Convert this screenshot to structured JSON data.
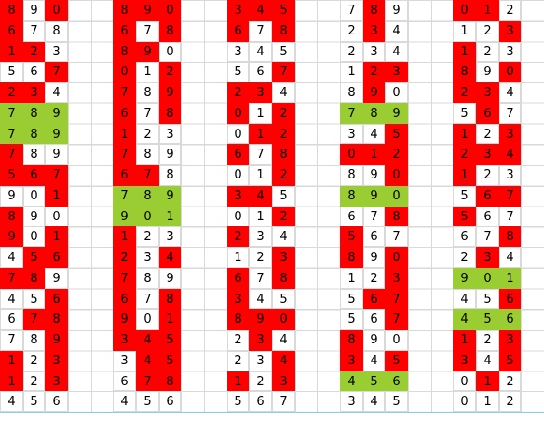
{
  "rows": [
    [
      {
        "v": 8,
        "fill": "red"
      },
      {
        "v": 9,
        "fill": "white"
      },
      {
        "v": 0,
        "fill": "red"
      },
      {
        "v": 8,
        "fill": "red"
      },
      {
        "v": 9,
        "fill": "red"
      },
      {
        "v": 0,
        "fill": "red"
      },
      {
        "v": 3,
        "fill": "red"
      },
      {
        "v": 4,
        "fill": "red"
      },
      {
        "v": 5,
        "fill": "red"
      },
      {
        "v": 7,
        "fill": "white"
      },
      {
        "v": 8,
        "fill": "red"
      },
      {
        "v": 9,
        "fill": "white"
      },
      {
        "v": 0,
        "fill": "red"
      },
      {
        "v": 1,
        "fill": "red"
      },
      {
        "v": 2,
        "fill": "white"
      }
    ],
    [
      {
        "v": 6,
        "fill": "red"
      },
      {
        "v": 7,
        "fill": "white"
      },
      {
        "v": 8,
        "fill": "white"
      },
      {
        "v": 6,
        "fill": "red"
      },
      {
        "v": 7,
        "fill": "white"
      },
      {
        "v": 8,
        "fill": "red"
      },
      {
        "v": 6,
        "fill": "red"
      },
      {
        "v": 7,
        "fill": "white"
      },
      {
        "v": 8,
        "fill": "red"
      },
      {
        "v": 2,
        "fill": "white"
      },
      {
        "v": 3,
        "fill": "red"
      },
      {
        "v": 4,
        "fill": "white"
      },
      {
        "v": 1,
        "fill": "white"
      },
      {
        "v": 2,
        "fill": "white"
      },
      {
        "v": 3,
        "fill": "red"
      }
    ],
    [
      {
        "v": 1,
        "fill": "red"
      },
      {
        "v": 2,
        "fill": "red"
      },
      {
        "v": 3,
        "fill": "white"
      },
      {
        "v": 8,
        "fill": "red"
      },
      {
        "v": 9,
        "fill": "red"
      },
      {
        "v": 0,
        "fill": "white"
      },
      {
        "v": 3,
        "fill": "white"
      },
      {
        "v": 4,
        "fill": "white"
      },
      {
        "v": 5,
        "fill": "white"
      },
      {
        "v": 2,
        "fill": "white"
      },
      {
        "v": 3,
        "fill": "white"
      },
      {
        "v": 4,
        "fill": "white"
      },
      {
        "v": 1,
        "fill": "red"
      },
      {
        "v": 2,
        "fill": "white"
      },
      {
        "v": 3,
        "fill": "white"
      }
    ],
    [
      {
        "v": 5,
        "fill": "white"
      },
      {
        "v": 6,
        "fill": "white"
      },
      {
        "v": 7,
        "fill": "red"
      },
      {
        "v": 0,
        "fill": "red"
      },
      {
        "v": 1,
        "fill": "white"
      },
      {
        "v": 2,
        "fill": "red"
      },
      {
        "v": 5,
        "fill": "white"
      },
      {
        "v": 6,
        "fill": "white"
      },
      {
        "v": 7,
        "fill": "red"
      },
      {
        "v": 1,
        "fill": "white"
      },
      {
        "v": 2,
        "fill": "red"
      },
      {
        "v": 3,
        "fill": "red"
      },
      {
        "v": 8,
        "fill": "red"
      },
      {
        "v": 9,
        "fill": "white"
      },
      {
        "v": 0,
        "fill": "red"
      }
    ],
    [
      {
        "v": 2,
        "fill": "red"
      },
      {
        "v": 3,
        "fill": "red"
      },
      {
        "v": 4,
        "fill": "white"
      },
      {
        "v": 7,
        "fill": "red"
      },
      {
        "v": 8,
        "fill": "white"
      },
      {
        "v": 9,
        "fill": "red"
      },
      {
        "v": 2,
        "fill": "red"
      },
      {
        "v": 3,
        "fill": "red"
      },
      {
        "v": 4,
        "fill": "white"
      },
      {
        "v": 8,
        "fill": "white"
      },
      {
        "v": 9,
        "fill": "red"
      },
      {
        "v": 0,
        "fill": "white"
      },
      {
        "v": 2,
        "fill": "red"
      },
      {
        "v": 3,
        "fill": "red"
      },
      {
        "v": 4,
        "fill": "white"
      }
    ],
    [
      {
        "v": 7,
        "fill": "yellowgreen"
      },
      {
        "v": 8,
        "fill": "yellowgreen"
      },
      {
        "v": 9,
        "fill": "yellowgreen"
      },
      {
        "v": 6,
        "fill": "red"
      },
      {
        "v": 7,
        "fill": "white"
      },
      {
        "v": 8,
        "fill": "red"
      },
      {
        "v": 0,
        "fill": "red"
      },
      {
        "v": 1,
        "fill": "white"
      },
      {
        "v": 2,
        "fill": "red"
      },
      {
        "v": 7,
        "fill": "yellowgreen"
      },
      {
        "v": 8,
        "fill": "yellowgreen"
      },
      {
        "v": 9,
        "fill": "yellowgreen"
      },
      {
        "v": 5,
        "fill": "white"
      },
      {
        "v": 6,
        "fill": "red"
      },
      {
        "v": 7,
        "fill": "white"
      }
    ],
    [
      {
        "v": 7,
        "fill": "yellowgreen"
      },
      {
        "v": 8,
        "fill": "yellowgreen"
      },
      {
        "v": 9,
        "fill": "yellowgreen"
      },
      {
        "v": 1,
        "fill": "red"
      },
      {
        "v": 2,
        "fill": "white"
      },
      {
        "v": 3,
        "fill": "white"
      },
      {
        "v": 0,
        "fill": "white"
      },
      {
        "v": 1,
        "fill": "red"
      },
      {
        "v": 2,
        "fill": "red"
      },
      {
        "v": 3,
        "fill": "white"
      },
      {
        "v": 4,
        "fill": "white"
      },
      {
        "v": 5,
        "fill": "red"
      },
      {
        "v": 1,
        "fill": "red"
      },
      {
        "v": 2,
        "fill": "white"
      },
      {
        "v": 3,
        "fill": "red"
      }
    ],
    [
      {
        "v": 7,
        "fill": "red"
      },
      {
        "v": 8,
        "fill": "white"
      },
      {
        "v": 9,
        "fill": "white"
      },
      {
        "v": 7,
        "fill": "red"
      },
      {
        "v": 8,
        "fill": "white"
      },
      {
        "v": 9,
        "fill": "white"
      },
      {
        "v": 6,
        "fill": "red"
      },
      {
        "v": 7,
        "fill": "white"
      },
      {
        "v": 8,
        "fill": "red"
      },
      {
        "v": 0,
        "fill": "red"
      },
      {
        "v": 1,
        "fill": "red"
      },
      {
        "v": 2,
        "fill": "red"
      },
      {
        "v": 2,
        "fill": "red"
      },
      {
        "v": 3,
        "fill": "red"
      },
      {
        "v": 4,
        "fill": "red"
      }
    ],
    [
      {
        "v": 5,
        "fill": "red"
      },
      {
        "v": 6,
        "fill": "red"
      },
      {
        "v": 7,
        "fill": "red"
      },
      {
        "v": 6,
        "fill": "red"
      },
      {
        "v": 7,
        "fill": "red"
      },
      {
        "v": 8,
        "fill": "white"
      },
      {
        "v": 0,
        "fill": "white"
      },
      {
        "v": 1,
        "fill": "white"
      },
      {
        "v": 2,
        "fill": "red"
      },
      {
        "v": 8,
        "fill": "white"
      },
      {
        "v": 9,
        "fill": "white"
      },
      {
        "v": 0,
        "fill": "red"
      },
      {
        "v": 1,
        "fill": "red"
      },
      {
        "v": 2,
        "fill": "white"
      },
      {
        "v": 3,
        "fill": "white"
      }
    ],
    [
      {
        "v": 9,
        "fill": "white"
      },
      {
        "v": 0,
        "fill": "white"
      },
      {
        "v": 1,
        "fill": "red"
      },
      {
        "v": 7,
        "fill": "yellowgreen"
      },
      {
        "v": 8,
        "fill": "yellowgreen"
      },
      {
        "v": 9,
        "fill": "yellowgreen"
      },
      {
        "v": 3,
        "fill": "red"
      },
      {
        "v": 4,
        "fill": "red"
      },
      {
        "v": 5,
        "fill": "white"
      },
      {
        "v": 8,
        "fill": "yellowgreen"
      },
      {
        "v": 9,
        "fill": "yellowgreen"
      },
      {
        "v": 0,
        "fill": "yellowgreen"
      },
      {
        "v": 5,
        "fill": "white"
      },
      {
        "v": 6,
        "fill": "red"
      },
      {
        "v": 7,
        "fill": "red"
      }
    ],
    [
      {
        "v": 8,
        "fill": "red"
      },
      {
        "v": 9,
        "fill": "white"
      },
      {
        "v": 0,
        "fill": "white"
      },
      {
        "v": 9,
        "fill": "yellowgreen"
      },
      {
        "v": 0,
        "fill": "yellowgreen"
      },
      {
        "v": 1,
        "fill": "yellowgreen"
      },
      {
        "v": 0,
        "fill": "white"
      },
      {
        "v": 1,
        "fill": "white"
      },
      {
        "v": 2,
        "fill": "red"
      },
      {
        "v": 6,
        "fill": "white"
      },
      {
        "v": 7,
        "fill": "white"
      },
      {
        "v": 8,
        "fill": "red"
      },
      {
        "v": 5,
        "fill": "red"
      },
      {
        "v": 6,
        "fill": "white"
      },
      {
        "v": 7,
        "fill": "white"
      }
    ],
    [
      {
        "v": 9,
        "fill": "red"
      },
      {
        "v": 0,
        "fill": "white"
      },
      {
        "v": 1,
        "fill": "red"
      },
      {
        "v": 1,
        "fill": "red"
      },
      {
        "v": 2,
        "fill": "white"
      },
      {
        "v": 3,
        "fill": "white"
      },
      {
        "v": 2,
        "fill": "red"
      },
      {
        "v": 3,
        "fill": "white"
      },
      {
        "v": 4,
        "fill": "white"
      },
      {
        "v": 5,
        "fill": "red"
      },
      {
        "v": 6,
        "fill": "white"
      },
      {
        "v": 7,
        "fill": "white"
      },
      {
        "v": 6,
        "fill": "white"
      },
      {
        "v": 7,
        "fill": "white"
      },
      {
        "v": 8,
        "fill": "red"
      }
    ],
    [
      {
        "v": 4,
        "fill": "white"
      },
      {
        "v": 5,
        "fill": "red"
      },
      {
        "v": 6,
        "fill": "red"
      },
      {
        "v": 2,
        "fill": "red"
      },
      {
        "v": 3,
        "fill": "white"
      },
      {
        "v": 4,
        "fill": "red"
      },
      {
        "v": 1,
        "fill": "white"
      },
      {
        "v": 2,
        "fill": "white"
      },
      {
        "v": 3,
        "fill": "red"
      },
      {
        "v": 8,
        "fill": "red"
      },
      {
        "v": 9,
        "fill": "white"
      },
      {
        "v": 0,
        "fill": "red"
      },
      {
        "v": 2,
        "fill": "white"
      },
      {
        "v": 3,
        "fill": "red"
      },
      {
        "v": 4,
        "fill": "white"
      }
    ],
    [
      {
        "v": 7,
        "fill": "red"
      },
      {
        "v": 8,
        "fill": "red"
      },
      {
        "v": 9,
        "fill": "white"
      },
      {
        "v": 7,
        "fill": "red"
      },
      {
        "v": 8,
        "fill": "white"
      },
      {
        "v": 9,
        "fill": "white"
      },
      {
        "v": 6,
        "fill": "red"
      },
      {
        "v": 7,
        "fill": "white"
      },
      {
        "v": 8,
        "fill": "red"
      },
      {
        "v": 1,
        "fill": "white"
      },
      {
        "v": 2,
        "fill": "white"
      },
      {
        "v": 3,
        "fill": "red"
      },
      {
        "v": 9,
        "fill": "yellowgreen"
      },
      {
        "v": 0,
        "fill": "yellowgreen"
      },
      {
        "v": 1,
        "fill": "yellowgreen"
      }
    ],
    [
      {
        "v": 4,
        "fill": "white"
      },
      {
        "v": 5,
        "fill": "white"
      },
      {
        "v": 6,
        "fill": "red"
      },
      {
        "v": 6,
        "fill": "red"
      },
      {
        "v": 7,
        "fill": "white"
      },
      {
        "v": 8,
        "fill": "red"
      },
      {
        "v": 3,
        "fill": "red"
      },
      {
        "v": 4,
        "fill": "white"
      },
      {
        "v": 5,
        "fill": "white"
      },
      {
        "v": 5,
        "fill": "white"
      },
      {
        "v": 6,
        "fill": "red"
      },
      {
        "v": 7,
        "fill": "red"
      },
      {
        "v": 4,
        "fill": "white"
      },
      {
        "v": 5,
        "fill": "white"
      },
      {
        "v": 6,
        "fill": "red"
      }
    ],
    [
      {
        "v": 6,
        "fill": "white"
      },
      {
        "v": 7,
        "fill": "red"
      },
      {
        "v": 8,
        "fill": "red"
      },
      {
        "v": 9,
        "fill": "red"
      },
      {
        "v": 0,
        "fill": "white"
      },
      {
        "v": 1,
        "fill": "red"
      },
      {
        "v": 8,
        "fill": "red"
      },
      {
        "v": 9,
        "fill": "red"
      },
      {
        "v": 0,
        "fill": "red"
      },
      {
        "v": 5,
        "fill": "white"
      },
      {
        "v": 6,
        "fill": "white"
      },
      {
        "v": 7,
        "fill": "red"
      },
      {
        "v": 4,
        "fill": "yellowgreen"
      },
      {
        "v": 5,
        "fill": "yellowgreen"
      },
      {
        "v": 6,
        "fill": "yellowgreen"
      }
    ],
    [
      {
        "v": 7,
        "fill": "white"
      },
      {
        "v": 8,
        "fill": "white"
      },
      {
        "v": 9,
        "fill": "red"
      },
      {
        "v": 3,
        "fill": "red"
      },
      {
        "v": 4,
        "fill": "red"
      },
      {
        "v": 5,
        "fill": "red"
      },
      {
        "v": 2,
        "fill": "white"
      },
      {
        "v": 3,
        "fill": "red"
      },
      {
        "v": 4,
        "fill": "white"
      },
      {
        "v": 8,
        "fill": "red"
      },
      {
        "v": 9,
        "fill": "white"
      },
      {
        "v": 0,
        "fill": "white"
      },
      {
        "v": 1,
        "fill": "red"
      },
      {
        "v": 2,
        "fill": "white"
      },
      {
        "v": 3,
        "fill": "red"
      }
    ],
    [
      {
        "v": 1,
        "fill": "red"
      },
      {
        "v": 2,
        "fill": "white"
      },
      {
        "v": 3,
        "fill": "red"
      },
      {
        "v": 3,
        "fill": "white"
      },
      {
        "v": 4,
        "fill": "red"
      },
      {
        "v": 5,
        "fill": "red"
      },
      {
        "v": 2,
        "fill": "white"
      },
      {
        "v": 3,
        "fill": "white"
      },
      {
        "v": 4,
        "fill": "red"
      },
      {
        "v": 3,
        "fill": "red"
      },
      {
        "v": 4,
        "fill": "white"
      },
      {
        "v": 5,
        "fill": "red"
      },
      {
        "v": 3,
        "fill": "red"
      },
      {
        "v": 4,
        "fill": "white"
      },
      {
        "v": 5,
        "fill": "red"
      }
    ],
    [
      {
        "v": 1,
        "fill": "red"
      },
      {
        "v": 2,
        "fill": "white"
      },
      {
        "v": 3,
        "fill": "red"
      },
      {
        "v": 6,
        "fill": "white"
      },
      {
        "v": 7,
        "fill": "red"
      },
      {
        "v": 8,
        "fill": "red"
      },
      {
        "v": 1,
        "fill": "red"
      },
      {
        "v": 2,
        "fill": "white"
      },
      {
        "v": 3,
        "fill": "red"
      },
      {
        "v": 4,
        "fill": "yellowgreen"
      },
      {
        "v": 5,
        "fill": "yellowgreen"
      },
      {
        "v": 6,
        "fill": "yellowgreen"
      },
      {
        "v": 0,
        "fill": "white"
      },
      {
        "v": 1,
        "fill": "red"
      },
      {
        "v": 2,
        "fill": "white"
      }
    ],
    [
      {
        "v": 4,
        "fill": "white"
      },
      {
        "v": 5,
        "fill": "white"
      },
      {
        "v": 6,
        "fill": "white"
      },
      {
        "v": 4,
        "fill": "white"
      },
      {
        "v": 5,
        "fill": "white"
      },
      {
        "v": 6,
        "fill": "white"
      },
      {
        "v": 5,
        "fill": "white"
      },
      {
        "v": 6,
        "fill": "white"
      },
      {
        "v": 7,
        "fill": "white"
      },
      {
        "v": 3,
        "fill": "white"
      },
      {
        "v": 4,
        "fill": "white"
      },
      {
        "v": 5,
        "fill": "white"
      },
      {
        "v": 0,
        "fill": "white"
      },
      {
        "v": 1,
        "fill": "white"
      },
      {
        "v": 2,
        "fill": "white"
      }
    ]
  ]
}
